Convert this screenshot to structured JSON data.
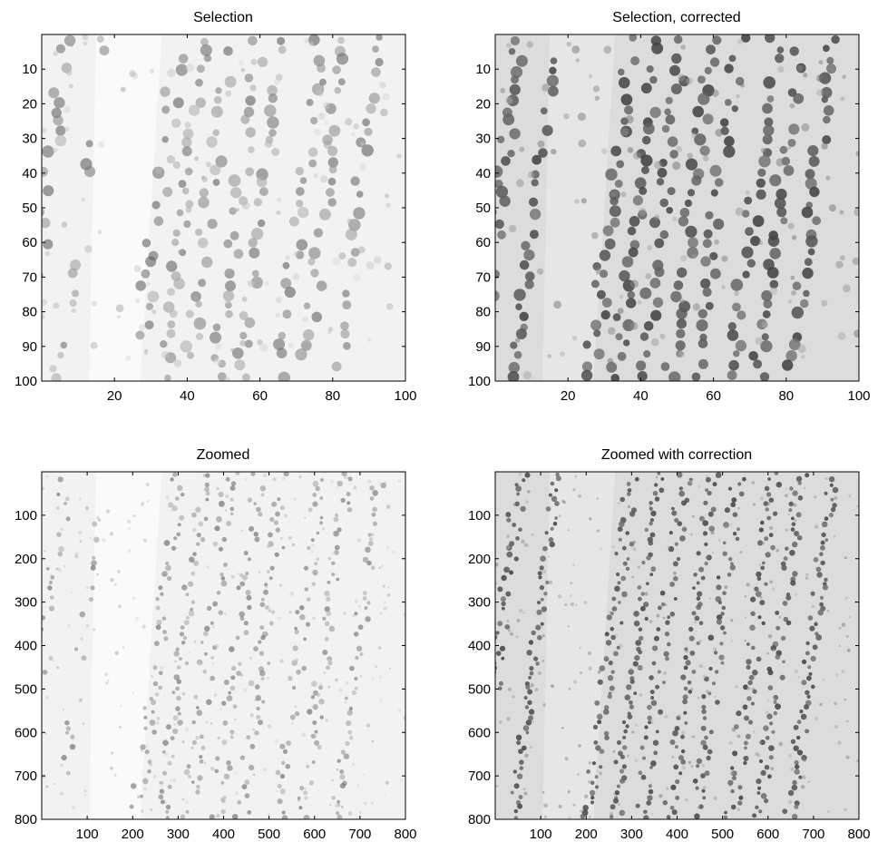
{
  "panels": [
    {
      "title": "Selection",
      "image_kind": "coarse",
      "corrected": false,
      "xlim": [
        0,
        100
      ],
      "ylim": [
        0,
        100
      ],
      "xticks": [
        20,
        40,
        60,
        80,
        100
      ],
      "yticks": [
        10,
        20,
        30,
        40,
        50,
        60,
        70,
        80,
        90,
        100
      ]
    },
    {
      "title": "Selection, corrected",
      "image_kind": "coarse",
      "corrected": true,
      "xlim": [
        0,
        100
      ],
      "ylim": [
        0,
        100
      ],
      "xticks": [
        20,
        40,
        60,
        80,
        100
      ],
      "yticks": [
        10,
        20,
        30,
        40,
        50,
        60,
        70,
        80,
        90,
        100
      ]
    },
    {
      "title": "Zoomed",
      "image_kind": "fine",
      "corrected": false,
      "xlim": [
        0,
        800
      ],
      "ylim": [
        0,
        800
      ],
      "xticks": [
        100,
        200,
        300,
        400,
        500,
        600,
        700,
        800
      ],
      "yticks": [
        100,
        200,
        300,
        400,
        500,
        600,
        700,
        800
      ]
    },
    {
      "title": "Zoomed with correction",
      "image_kind": "fine",
      "corrected": true,
      "xlim": [
        0,
        800
      ],
      "ylim": [
        0,
        800
      ],
      "xticks": [
        100,
        200,
        300,
        400,
        500,
        600,
        700,
        800
      ],
      "yticks": [
        100,
        200,
        300,
        400,
        500,
        600,
        700,
        800
      ]
    }
  ],
  "colormap": "gray"
}
